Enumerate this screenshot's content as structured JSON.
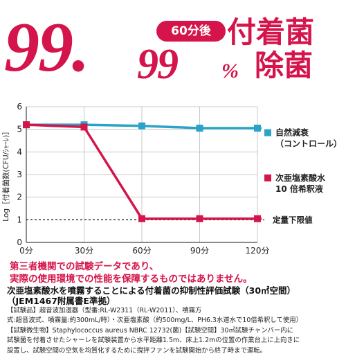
{
  "headline": {
    "big_number": "99.",
    "big_decimal": "99",
    "percent": "%",
    "badge": "60分後",
    "title_line1": "付着菌",
    "title_line2": "除菌"
  },
  "colors": {
    "accent": "#d4144a",
    "control": "#2aa3c8",
    "treated": "#d4144a"
  },
  "chart_data": {
    "type": "line",
    "categories": [
      "0分",
      "30分",
      "60分",
      "90分",
      "120分"
    ],
    "x": [
      0,
      30,
      60,
      90,
      120
    ],
    "series": [
      {
        "name": "自然減衰\n（コントロール）",
        "values": [
          5.2,
          5.2,
          5.15,
          5.05,
          5.05
        ],
        "color": "#2aa3c8"
      },
      {
        "name": "次亜塩素酸水\n10 倍希釈液",
        "values": [
          5.2,
          5.1,
          1.05,
          1.05,
          1.05
        ],
        "color": "#d4144a"
      }
    ],
    "ylabel": "Log［付着菌数(CFU/ｼｬｰﾚ)］",
    "ylim": [
      0,
      6
    ],
    "yticks": [
      "0",
      "1",
      "2",
      "3",
      "4",
      "5",
      "6"
    ],
    "reference_line": {
      "value": 1,
      "label": "定量下限値"
    },
    "grid": true,
    "legend": "right"
  },
  "notice": {
    "line1": "第三者機関での試験データであり、",
    "line2": "実際の使用環境での性能を保障するものではありません。"
  },
  "test": {
    "title_line1": "次亜塩素酸水を噴霧することによる付着菌の抑制性評価試験（30㎥空間）",
    "title_line2": "（JEM1467附属書E準拠）",
    "desc_line1": "【試験品】超音波加湿器（型番:RL-W2311（RL-W2011）、噴霧方",
    "desc_line2": "式:超音波式、噴霧量:約300mL/時）・次亜塩素酸（約500mg/L、PH6.3水道水で10倍希釈して使用）",
    "desc_line3": "【試験微生物】Staphylococcus aureus NBRC 12732(菌)【試験空間】30㎥試験チャンバー内に",
    "desc_line4": "試験菌を付着させたシャーレを試験装置から水平距離1.5m、床上1.2mの位置の作業台上に上向きに",
    "desc_line5": "設置し、試験空間の空気を均質化するために撹拌ファンを試験開始から終了時まで運転。"
  }
}
